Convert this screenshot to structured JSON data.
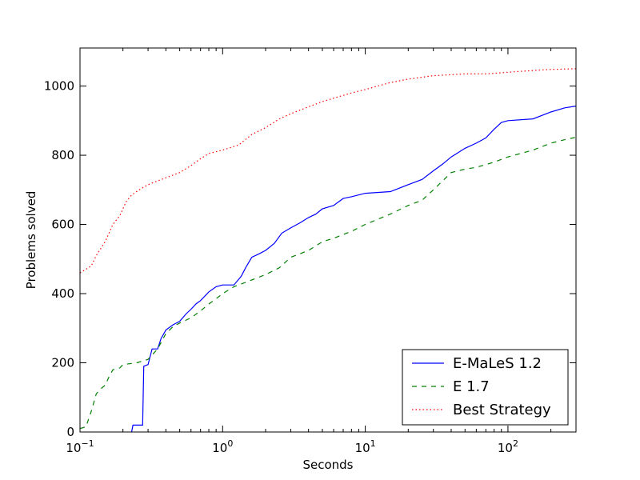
{
  "chart_data": {
    "type": "line",
    "title": "",
    "xlabel": "Seconds",
    "ylabel": "Problems solved",
    "x_scale": "log",
    "xlim": [
      0.1,
      300
    ],
    "ylim": [
      0,
      1110
    ],
    "grid": false,
    "legend_position": "lower-right",
    "x_ticks": [
      {
        "value": 0.1,
        "base": "10",
        "exp": "−1"
      },
      {
        "value": 1,
        "base": "10",
        "exp": "0"
      },
      {
        "value": 10,
        "base": "10",
        "exp": "1"
      },
      {
        "value": 100,
        "base": "10",
        "exp": "2"
      }
    ],
    "y_ticks": [
      {
        "value": 0,
        "label": "0"
      },
      {
        "value": 200,
        "label": "200"
      },
      {
        "value": 400,
        "label": "400"
      },
      {
        "value": 600,
        "label": "600"
      },
      {
        "value": 800,
        "label": "800"
      },
      {
        "value": 1000,
        "label": "1000"
      }
    ],
    "series": [
      {
        "name": "E-MaLeS 1.2",
        "color": "#0000ff",
        "dash": "solid",
        "points": [
          [
            0.23,
            0
          ],
          [
            0.235,
            20
          ],
          [
            0.26,
            20
          ],
          [
            0.275,
            20
          ],
          [
            0.28,
            190
          ],
          [
            0.3,
            195
          ],
          [
            0.32,
            240
          ],
          [
            0.35,
            240
          ],
          [
            0.37,
            270
          ],
          [
            0.4,
            295
          ],
          [
            0.45,
            310
          ],
          [
            0.5,
            320
          ],
          [
            0.55,
            340
          ],
          [
            0.6,
            355
          ],
          [
            0.65,
            370
          ],
          [
            0.7,
            380
          ],
          [
            0.8,
            405
          ],
          [
            0.9,
            420
          ],
          [
            1.0,
            425
          ],
          [
            1.2,
            425
          ],
          [
            1.35,
            450
          ],
          [
            1.45,
            475
          ],
          [
            1.6,
            505
          ],
          [
            1.8,
            515
          ],
          [
            2.0,
            525
          ],
          [
            2.3,
            545
          ],
          [
            2.6,
            575
          ],
          [
            3.0,
            590
          ],
          [
            3.5,
            605
          ],
          [
            4.0,
            620
          ],
          [
            4.5,
            630
          ],
          [
            5.0,
            645
          ],
          [
            6.0,
            655
          ],
          [
            7.0,
            675
          ],
          [
            8.0,
            680
          ],
          [
            10.0,
            690
          ],
          [
            15.0,
            695
          ],
          [
            20.0,
            715
          ],
          [
            25.0,
            730
          ],
          [
            30.0,
            755
          ],
          [
            35.0,
            775
          ],
          [
            40.0,
            795
          ],
          [
            50.0,
            820
          ],
          [
            60.0,
            835
          ],
          [
            70.0,
            850
          ],
          [
            80.0,
            875
          ],
          [
            90.0,
            895
          ],
          [
            100.0,
            900
          ],
          [
            150.0,
            905
          ],
          [
            200.0,
            925
          ],
          [
            250.0,
            937
          ],
          [
            300.0,
            942
          ]
        ]
      },
      {
        "name": "E 1.7",
        "color": "#008000",
        "dash": "dashed",
        "points": [
          [
            0.1,
            10
          ],
          [
            0.11,
            15
          ],
          [
            0.12,
            60
          ],
          [
            0.13,
            110
          ],
          [
            0.14,
            125
          ],
          [
            0.15,
            135
          ],
          [
            0.16,
            160
          ],
          [
            0.17,
            180
          ],
          [
            0.19,
            185
          ],
          [
            0.2,
            195
          ],
          [
            0.25,
            200
          ],
          [
            0.3,
            210
          ],
          [
            0.35,
            240
          ],
          [
            0.4,
            285
          ],
          [
            0.45,
            305
          ],
          [
            0.5,
            315
          ],
          [
            0.6,
            330
          ],
          [
            0.7,
            350
          ],
          [
            0.8,
            370
          ],
          [
            0.9,
            385
          ],
          [
            1.0,
            400
          ],
          [
            1.2,
            420
          ],
          [
            1.5,
            435
          ],
          [
            2.0,
            455
          ],
          [
            2.5,
            475
          ],
          [
            3.0,
            505
          ],
          [
            4.0,
            525
          ],
          [
            5.0,
            550
          ],
          [
            6.0,
            560
          ],
          [
            8.0,
            580
          ],
          [
            10.0,
            600
          ],
          [
            15.0,
            630
          ],
          [
            20.0,
            655
          ],
          [
            25.0,
            670
          ],
          [
            30.0,
            700
          ],
          [
            40.0,
            750
          ],
          [
            50.0,
            760
          ],
          [
            60.0,
            765
          ],
          [
            80.0,
            780
          ],
          [
            100.0,
            795
          ],
          [
            150.0,
            815
          ],
          [
            200.0,
            835
          ],
          [
            250.0,
            845
          ],
          [
            300.0,
            852
          ]
        ]
      },
      {
        "name": "Best Strategy",
        "color": "#ff0000",
        "dash": "dotted",
        "points": [
          [
            0.1,
            460
          ],
          [
            0.12,
            480
          ],
          [
            0.13,
            510
          ],
          [
            0.15,
            550
          ],
          [
            0.17,
            600
          ],
          [
            0.19,
            625
          ],
          [
            0.21,
            665
          ],
          [
            0.23,
            685
          ],
          [
            0.26,
            700
          ],
          [
            0.3,
            715
          ],
          [
            0.4,
            735
          ],
          [
            0.5,
            750
          ],
          [
            0.6,
            770
          ],
          [
            0.7,
            790
          ],
          [
            0.8,
            805
          ],
          [
            1.0,
            815
          ],
          [
            1.3,
            830
          ],
          [
            1.6,
            860
          ],
          [
            2.0,
            880
          ],
          [
            2.5,
            905
          ],
          [
            3.0,
            920
          ],
          [
            4.0,
            940
          ],
          [
            5.0,
            955
          ],
          [
            6.0,
            965
          ],
          [
            8.0,
            980
          ],
          [
            10.0,
            990
          ],
          [
            15.0,
            1010
          ],
          [
            20.0,
            1020
          ],
          [
            30.0,
            1030
          ],
          [
            50.0,
            1035
          ],
          [
            70.0,
            1035
          ],
          [
            100.0,
            1040
          ],
          [
            150.0,
            1045
          ],
          [
            200.0,
            1048
          ],
          [
            300.0,
            1050
          ]
        ]
      }
    ]
  }
}
